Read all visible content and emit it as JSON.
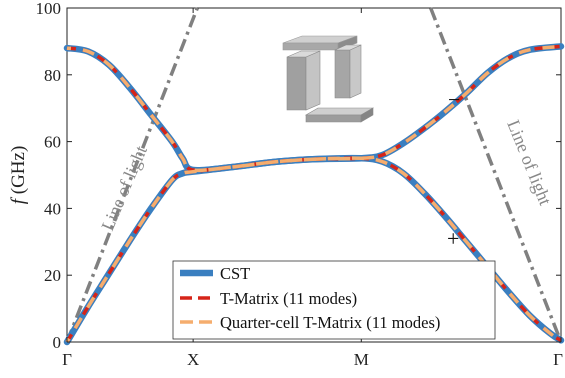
{
  "chart_data": {
    "type": "line",
    "title": "",
    "ylabel_italic": "f",
    "ylabel_unit": " (GHz)",
    "xlabel": "",
    "ylim": [
      0,
      100
    ],
    "yticks": [
      "0",
      "20",
      "40",
      "60",
      "80",
      "100"
    ],
    "x_categories": [
      "Γ",
      "X",
      "M",
      "Γ"
    ],
    "grid": false,
    "legend_position": "bottom-center",
    "series": [
      {
        "name": "CST",
        "color": "#3a7fc0",
        "style": "solid",
        "band_lower": [
          [
            0,
            0
          ],
          [
            0.1,
            10.5
          ],
          [
            0.2,
            20.5
          ],
          [
            0.3,
            30.5
          ],
          [
            0.4,
            40
          ],
          [
            0.5,
            48.5
          ],
          [
            0.55,
            50.5
          ],
          [
            0.6,
            51
          ],
          [
            0.8,
            52.5
          ],
          [
            1,
            54
          ],
          [
            1.2,
            54.8
          ],
          [
            1.4,
            55
          ],
          [
            1.5,
            54
          ],
          [
            1.6,
            50.5
          ],
          [
            1.7,
            44.5
          ],
          [
            1.8,
            37.5
          ],
          [
            1.9,
            30
          ],
          [
            2,
            22.5
          ],
          [
            2.1,
            15
          ],
          [
            2.2,
            8
          ],
          [
            2.3,
            2.5
          ],
          [
            2.35,
            0.5
          ]
        ],
        "band_upper": [
          [
            0,
            88
          ],
          [
            0.1,
            87
          ],
          [
            0.2,
            83
          ],
          [
            0.3,
            76
          ],
          [
            0.4,
            68
          ],
          [
            0.5,
            60
          ],
          [
            0.55,
            55
          ],
          [
            0.6,
            51.5
          ],
          [
            0.8,
            52.5
          ],
          [
            1,
            54
          ],
          [
            1.2,
            54.8
          ],
          [
            1.4,
            55
          ],
          [
            1.5,
            56
          ],
          [
            1.6,
            59.5
          ],
          [
            1.7,
            64
          ],
          [
            1.8,
            69
          ],
          [
            1.9,
            74.5
          ],
          [
            2,
            80.5
          ],
          [
            2.1,
            85
          ],
          [
            2.2,
            87.5
          ],
          [
            2.35,
            88.5
          ]
        ]
      },
      {
        "name": "T-Matrix (11 modes)",
        "color": "#d62418",
        "style": "dashed"
      },
      {
        "name": "Quarter-cell T-Matrix (11 modes)",
        "color": "#f5ad6e",
        "style": "dashed"
      }
    ],
    "light_line_left": [
      [
        0,
        0
      ],
      [
        0.62,
        100
      ]
    ],
    "light_line_right": [
      [
        1.73,
        100
      ],
      [
        2.35,
        0
      ]
    ],
    "annotations": {
      "line_of_light_left": "Line of light",
      "line_of_light_right": "Line of light",
      "minus_sign": "−",
      "plus_sign": "+"
    }
  }
}
